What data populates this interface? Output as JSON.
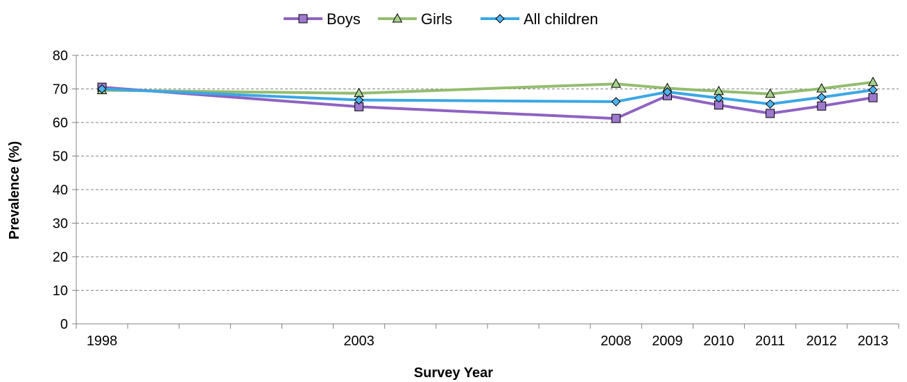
{
  "chart_data": {
    "type": "line",
    "title": "",
    "xlabel": "Survey Year",
    "ylabel": "Prevalence (%)",
    "x": [
      1998,
      2003,
      2008,
      2009,
      2010,
      2011,
      2012,
      2013
    ],
    "x_tick_labels": [
      "1998",
      "2003",
      "2008",
      "2009",
      "2010",
      "2011",
      "2012",
      "2013"
    ],
    "xlim": [
      1997.5,
      2013.5
    ],
    "ylim": [
      0,
      80
    ],
    "y_ticks": [
      0,
      10,
      20,
      30,
      40,
      50,
      60,
      70,
      80
    ],
    "y_tick_labels": [
      "0",
      "10",
      "20",
      "30",
      "40",
      "50",
      "60",
      "70",
      "80"
    ],
    "grid": "horizontal-dashed",
    "legend_position": "top-center",
    "series": [
      {
        "name": "Boys",
        "marker": "square",
        "color": "#8E63C1",
        "marker_fill": "#9E79CE",
        "values": [
          70.5,
          64.7,
          61.2,
          68.0,
          65.2,
          62.7,
          64.9,
          67.4
        ]
      },
      {
        "name": "Girls",
        "marker": "triangle",
        "color": "#93BC6E",
        "marker_fill": "#A9D18E",
        "values": [
          69.6,
          68.7,
          71.5,
          70.2,
          69.3,
          68.5,
          70.1,
          72.0
        ]
      },
      {
        "name": "All children",
        "marker": "diamond",
        "color": "#3BA7E4",
        "marker_fill": "#4FB3EE",
        "values": [
          70.0,
          66.7,
          66.2,
          69.1,
          67.3,
          65.5,
          67.5,
          69.7
        ]
      }
    ]
  }
}
